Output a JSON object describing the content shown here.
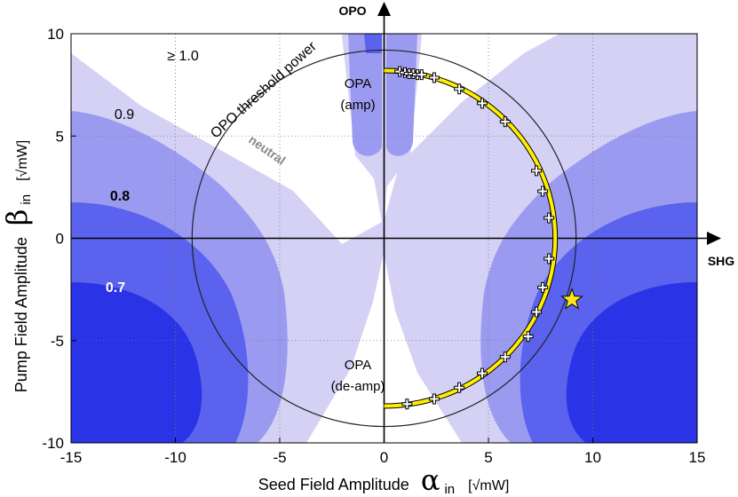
{
  "chart_data": {
    "type": "contour",
    "xlabel": "Seed Field Amplitude",
    "xlabel_symbol": "α",
    "xlabel_sub": "in",
    "xlabel_unit": "[√mW]",
    "ylabel": "Pump Field Amplitude",
    "ylabel_symbol": "β",
    "ylabel_sub": "in",
    "ylabel_unit": "[√mW]",
    "xlim": [
      -15,
      15
    ],
    "ylim": [
      -10,
      10
    ],
    "xticks": [
      -15,
      -10,
      -5,
      0,
      5,
      10,
      15
    ],
    "yticks": [
      -10,
      -5,
      0,
      5,
      10
    ],
    "grid": true,
    "axis_arrow_labels": {
      "x": "SHG",
      "y": "OPO"
    },
    "contour_levels": [
      {
        "label": "≥ 1.0",
        "color": "#ffffff"
      },
      {
        "label": "0.9",
        "color": "#d4d1f5"
      },
      {
        "label": "0.8",
        "color": "#9b9af1"
      },
      {
        "label": "0.7",
        "color": "#5a62ee"
      },
      {
        "label": "",
        "color": "#2b33e6"
      }
    ],
    "region_labels": {
      "opa_amp_title": "OPA",
      "opa_amp_sub": "(amp)",
      "opa_deamp_title": "OPA",
      "opa_deamp_sub": "(de-amp)",
      "neutral": "neutral",
      "threshold": "OPO threshold power"
    },
    "threshold_circle": {
      "center": [
        0,
        0
      ],
      "radius": 9.2
    },
    "trajectory": {
      "color": "#ffee00",
      "center": [
        0,
        0
      ],
      "radius": 8.2,
      "start_angle_deg": 90,
      "end_angle_deg": -90,
      "markers": [
        [
          0.75,
          8.15
        ],
        [
          1.0,
          8.1
        ],
        [
          1.2,
          8.05
        ],
        [
          1.4,
          8.05
        ],
        [
          1.6,
          8.0
        ],
        [
          1.8,
          8.0
        ],
        [
          2.4,
          7.85
        ],
        [
          3.6,
          7.3
        ],
        [
          4.7,
          6.6
        ],
        [
          5.8,
          5.7
        ],
        [
          7.3,
          3.3
        ],
        [
          7.6,
          2.3
        ],
        [
          7.9,
          1.0
        ],
        [
          7.9,
          -1.0
        ],
        [
          7.6,
          -2.4
        ],
        [
          7.3,
          -3.6
        ],
        [
          6.9,
          -4.8
        ],
        [
          5.8,
          -5.8
        ],
        [
          4.7,
          -6.6
        ],
        [
          3.6,
          -7.3
        ],
        [
          2.4,
          -7.85
        ],
        [
          1.1,
          -8.1
        ]
      ]
    },
    "star": {
      "x": 9.0,
      "y": -3.0,
      "color": "#ffe61a"
    }
  }
}
